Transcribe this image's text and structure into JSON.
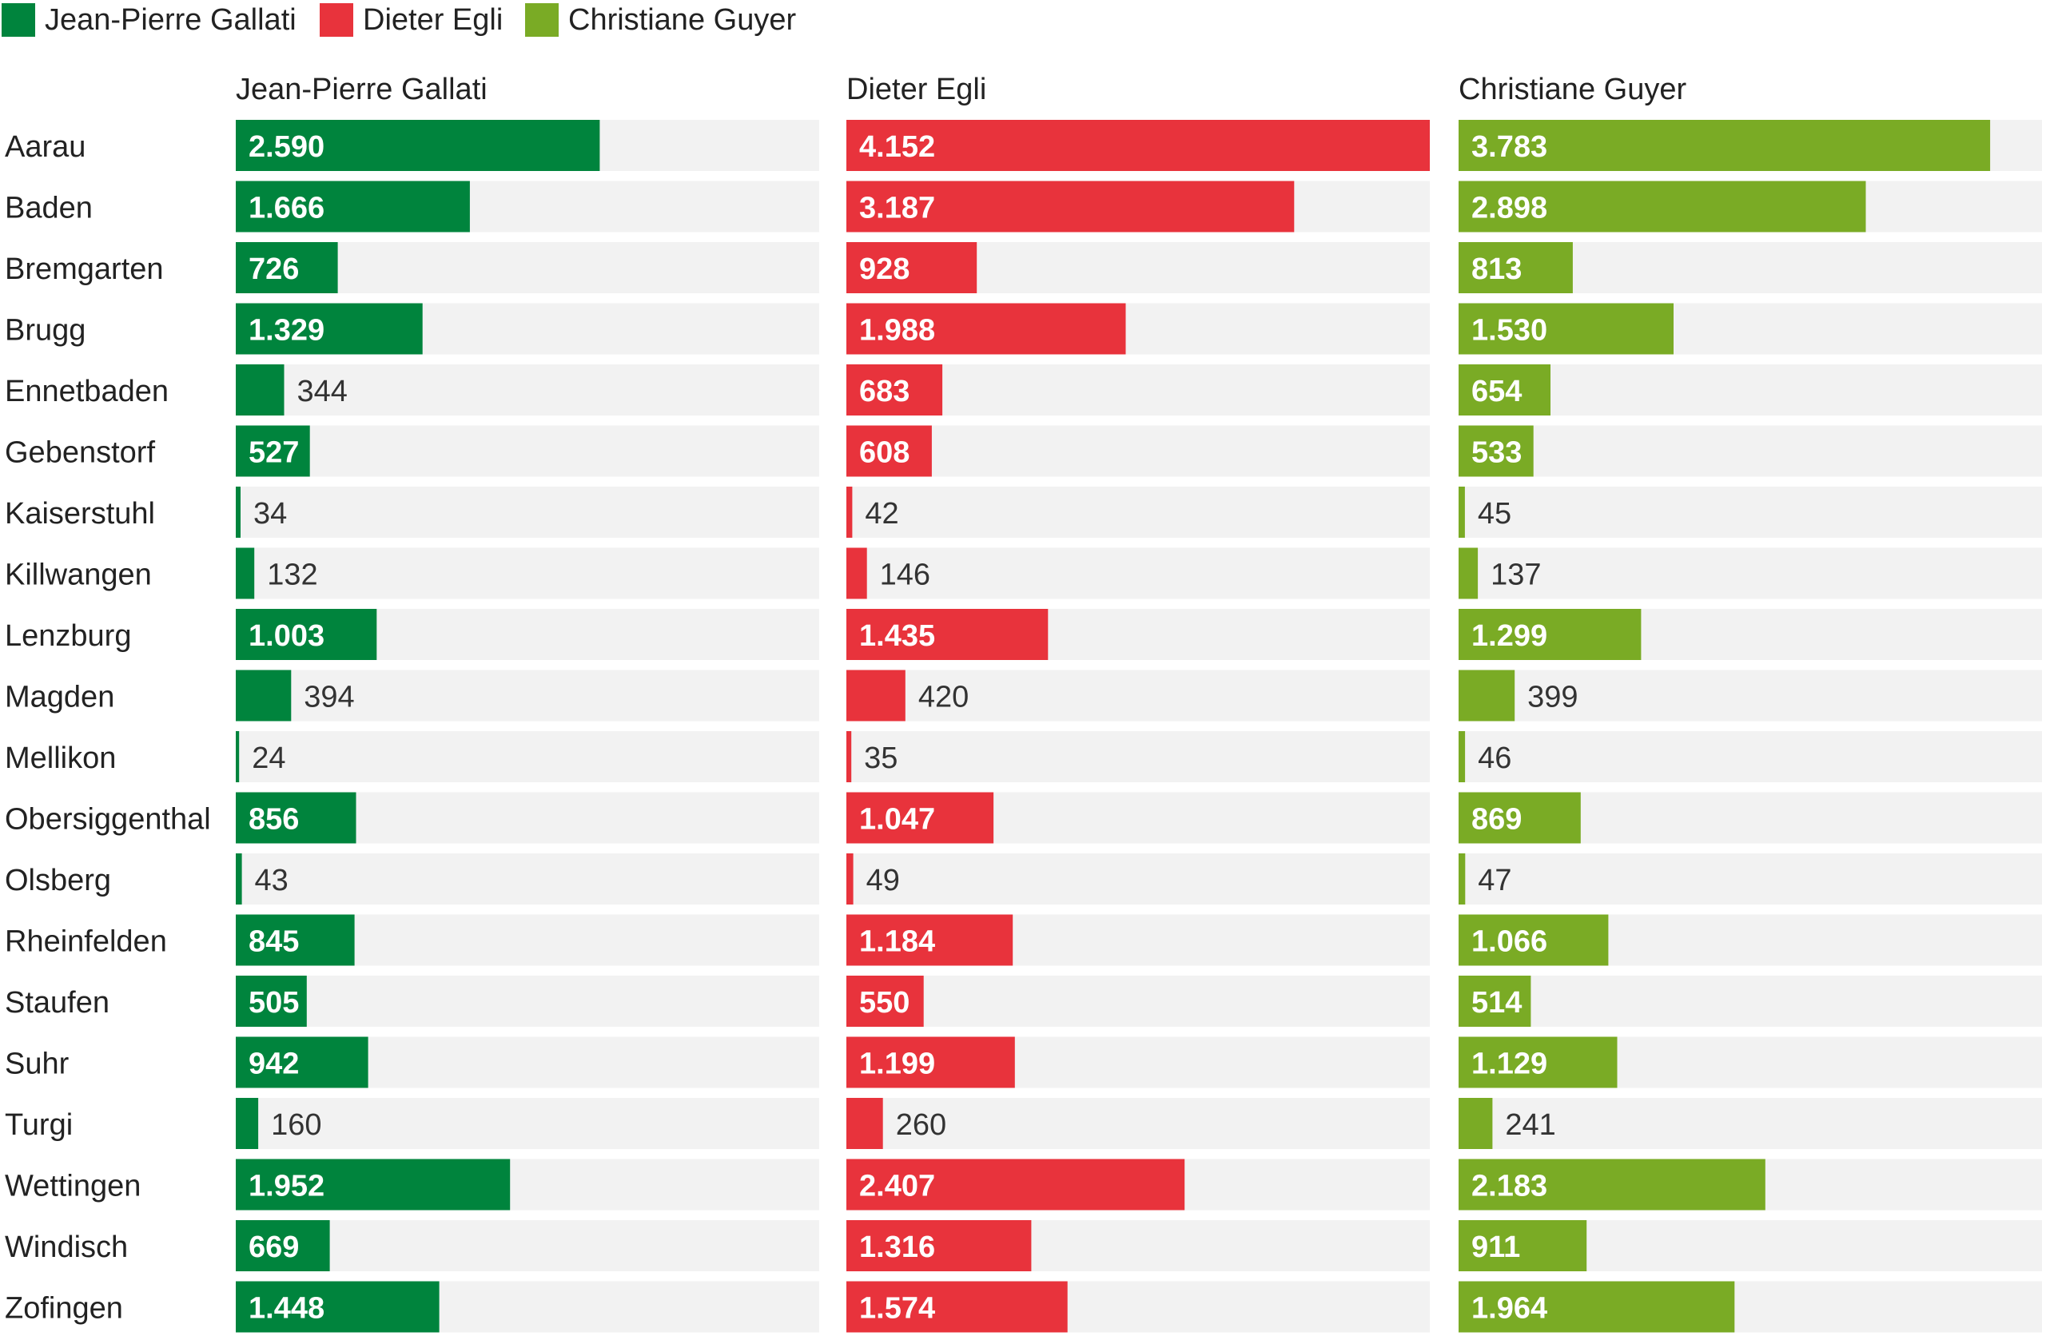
{
  "chart_data": {
    "type": "bar",
    "orientation": "horizontal",
    "layout": "small-multiples",
    "title": "",
    "xlabel": "",
    "ylabel": "",
    "grid": false,
    "legend_position": "top-left",
    "categories": [
      "Aarau",
      "Baden",
      "Bremgarten",
      "Brugg",
      "Ennetbaden",
      "Gebenstorf",
      "Kaiserstuhl",
      "Killwangen",
      "Lenzburg",
      "Magden",
      "Mellikon",
      "Obersiggenthal",
      "Olsberg",
      "Rheinfelden",
      "Staufen",
      "Suhr",
      "Turgi",
      "Wettingen",
      "Windisch",
      "Zofingen"
    ],
    "xlim": [
      0,
      4152
    ],
    "series": [
      {
        "name": "Jean-Pierre Gallati",
        "color": "#00843d",
        "values": [
          2590,
          1666,
          726,
          1329,
          344,
          527,
          34,
          132,
          1003,
          394,
          24,
          856,
          43,
          845,
          505,
          942,
          160,
          1952,
          669,
          1448
        ],
        "labels": [
          "2.590",
          "1.666",
          "726",
          "1.329",
          "344",
          "527",
          "34",
          "132",
          "1.003",
          "394",
          "24",
          "856",
          "43",
          "845",
          "505",
          "942",
          "160",
          "1.952",
          "669",
          "1.448"
        ]
      },
      {
        "name": "Dieter Egli",
        "color": "#e8333c",
        "values": [
          4152,
          3187,
          928,
          1988,
          683,
          608,
          42,
          146,
          1435,
          420,
          35,
          1047,
          49,
          1184,
          550,
          1199,
          260,
          2407,
          1316,
          1574
        ],
        "labels": [
          "4.152",
          "3.187",
          "928",
          "1.988",
          "683",
          "608",
          "42",
          "146",
          "1.435",
          "420",
          "35",
          "1.047",
          "49",
          "1.184",
          "550",
          "1.199",
          "260",
          "2.407",
          "1.316",
          "1.574"
        ]
      },
      {
        "name": "Christiane Guyer",
        "color": "#7aab25",
        "values": [
          3783,
          2898,
          813,
          1530,
          654,
          533,
          45,
          137,
          1299,
          399,
          46,
          869,
          47,
          1066,
          514,
          1129,
          241,
          2183,
          911,
          1964
        ],
        "labels": [
          "3.783",
          "2.898",
          "813",
          "1.530",
          "654",
          "533",
          "45",
          "137",
          "1.299",
          "399",
          "46",
          "869",
          "47",
          "1.066",
          "514",
          "1.129",
          "241",
          "2.183",
          "911",
          "1.964"
        ]
      }
    ]
  },
  "colors": {
    "track": "#f2f2f2",
    "label_inside": "#ffffff",
    "label_outside": "#333333",
    "text": "#222222"
  }
}
